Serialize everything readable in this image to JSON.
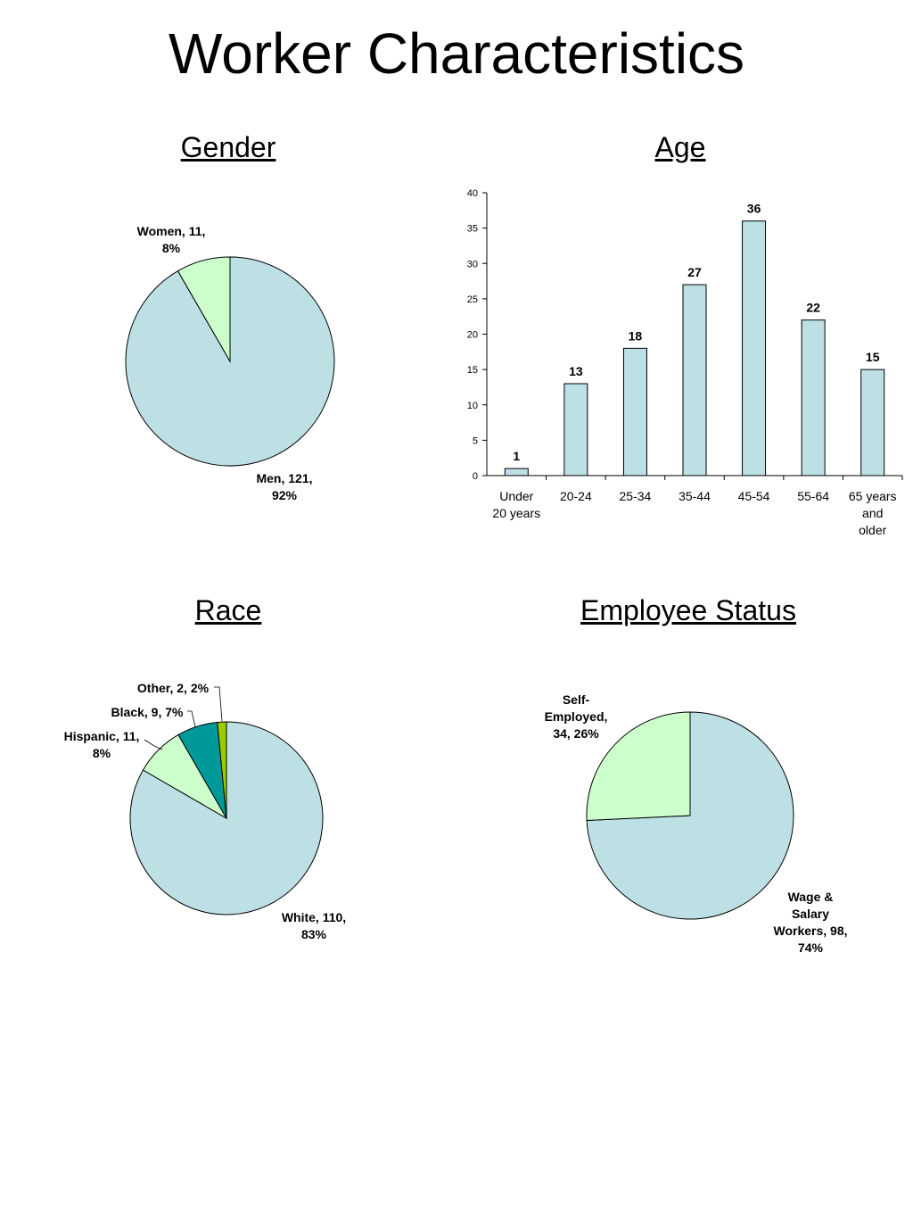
{
  "page": {
    "title": "Worker Characteristics"
  },
  "colors": {
    "light_blue": "#bce0e4",
    "light_green": "#ccffcc",
    "teal": "#009999",
    "lime": "#99cc00",
    "stroke": "#000000"
  },
  "chart_data": [
    {
      "id": "gender",
      "type": "pie",
      "title": "Gender",
      "slices": [
        {
          "name": "Men",
          "value": 121,
          "percent": "92%",
          "label_lines": [
            "Men, 121,",
            "92%"
          ],
          "color": "#bce0e4"
        },
        {
          "name": "Women",
          "value": 11,
          "percent": "8%",
          "label_lines": [
            "Women, 11,",
            "8%"
          ],
          "color": "#ccffcc"
        }
      ]
    },
    {
      "id": "age",
      "type": "bar",
      "title": "Age",
      "categories": [
        [
          "Under",
          "20 years"
        ],
        [
          "20-24"
        ],
        [
          "25-34"
        ],
        [
          "35-44"
        ],
        [
          "45-54"
        ],
        [
          "55-64"
        ],
        [
          "65 years",
          "and",
          "older"
        ]
      ],
      "values": [
        1,
        13,
        18,
        27,
        36,
        22,
        15
      ],
      "ylim": [
        0,
        40
      ],
      "yticks": [
        0,
        5,
        10,
        15,
        20,
        25,
        30,
        35,
        40
      ],
      "color": "#bce0e4"
    },
    {
      "id": "race",
      "type": "pie",
      "title": "Race",
      "slices": [
        {
          "name": "White",
          "value": 110,
          "percent": "83%",
          "label_lines": [
            "White, 110,",
            "83%"
          ],
          "color": "#bce0e4"
        },
        {
          "name": "Hispanic",
          "value": 11,
          "percent": "8%",
          "label_lines": [
            "Hispanic, 11,",
            "8%"
          ],
          "color": "#ccffcc"
        },
        {
          "name": "Black",
          "value": 9,
          "percent": "7%",
          "label_lines": [
            "Black, 9, 7%"
          ],
          "color": "#009999"
        },
        {
          "name": "Other",
          "value": 2,
          "percent": "2%",
          "label_lines": [
            "Other, 2, 2%"
          ],
          "color": "#99cc00"
        }
      ]
    },
    {
      "id": "employee-status",
      "type": "pie",
      "title": "Employee Status",
      "slices": [
        {
          "name": "Wage & Salary Workers",
          "value": 98,
          "percent": "74%",
          "label_lines": [
            "Wage &",
            "Salary",
            "Workers, 98,",
            "74%"
          ],
          "color": "#bce0e4"
        },
        {
          "name": "Self-Employed",
          "value": 34,
          "percent": "26%",
          "label_lines": [
            "Self-",
            "Employed,",
            "34, 26%"
          ],
          "color": "#ccffcc"
        }
      ]
    }
  ]
}
